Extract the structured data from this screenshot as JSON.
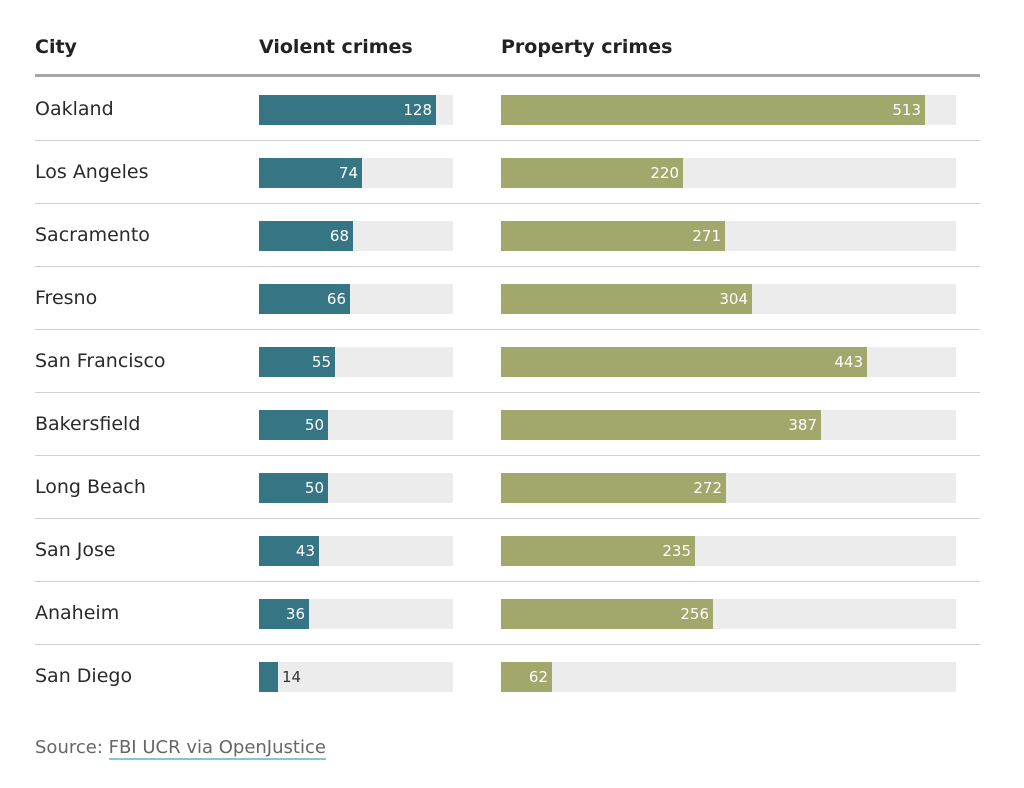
{
  "chart_data": {
    "type": "table",
    "columns": [
      "City",
      "Violent crimes",
      "Property crimes"
    ],
    "violent_max": 140,
    "property_max": 550,
    "rows": [
      {
        "city": "Oakland",
        "violent": 128,
        "property": 513
      },
      {
        "city": "Los Angeles",
        "violent": 74,
        "property": 220
      },
      {
        "city": "Sacramento",
        "violent": 68,
        "property": 271
      },
      {
        "city": "Fresno",
        "violent": 66,
        "property": 304
      },
      {
        "city": "San Francisco",
        "violent": 55,
        "property": 443
      },
      {
        "city": "Bakersfield",
        "violent": 50,
        "property": 387
      },
      {
        "city": "Long Beach",
        "violent": 50,
        "property": 272
      },
      {
        "city": "San Jose",
        "violent": 43,
        "property": 235
      },
      {
        "city": "Anaheim",
        "violent": 36,
        "property": 256
      },
      {
        "city": "San Diego",
        "violent": 14,
        "property": 62
      }
    ],
    "colors": {
      "violent": "#367584",
      "property": "#a2a86b",
      "track": "#ececec"
    }
  },
  "footer": {
    "source_label": "Source: ",
    "source_link": "FBI UCR via OpenJustice"
  }
}
